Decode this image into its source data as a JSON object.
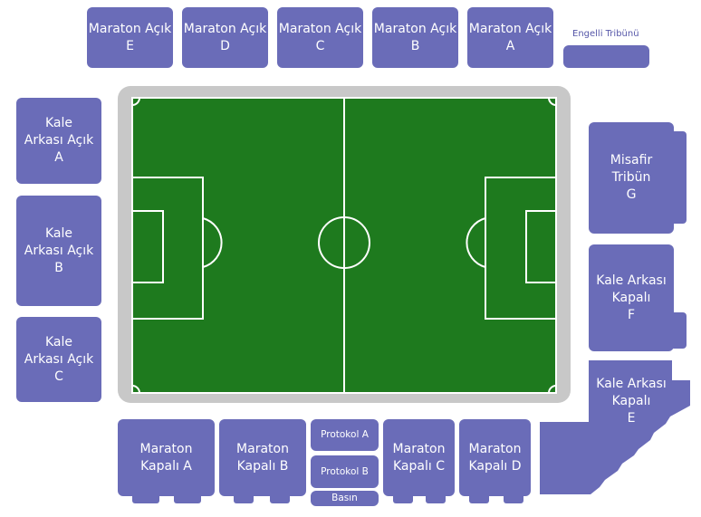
{
  "stands": {
    "maraton_acik_e": "Maraton Açık\nE",
    "maraton_acik_d": "Maraton Açık\nD",
    "maraton_acik_c": "Maraton Açık\nC",
    "maraton_acik_b": "Maraton Açık\nB",
    "maraton_acik_a": "Maraton Açık\nA",
    "engelli": "Engelli Tribünü",
    "kale_acik_a": "Kale\nArkası Açık\nA",
    "kale_acik_b": "Kale\nArkası Açık\nB",
    "kale_acik_c": "Kale\nArkası Açık\nC",
    "misafir_g": "Misafir\nTribün\nG",
    "kale_kapali_f": "Kale Arkası\nKapalı\nF",
    "kale_kapali_e": "Kale Arkası\nKapalı\nE",
    "maraton_kapali_a": "Maraton\nKapalı A",
    "maraton_kapali_b": "Maraton\nKapalı B",
    "protokol_a": "Protokol A",
    "protokol_b": "Protokol B",
    "basin": "Basın",
    "maraton_kapali_c": "Maraton\nKapalı C",
    "maraton_kapali_d": "Maraton\nKapalı D"
  },
  "colors": {
    "stand": "#6a6cb8",
    "pitch_green": "#1e7a1e",
    "track_gray": "#c8c8c8",
    "lines": "#ffffff"
  }
}
